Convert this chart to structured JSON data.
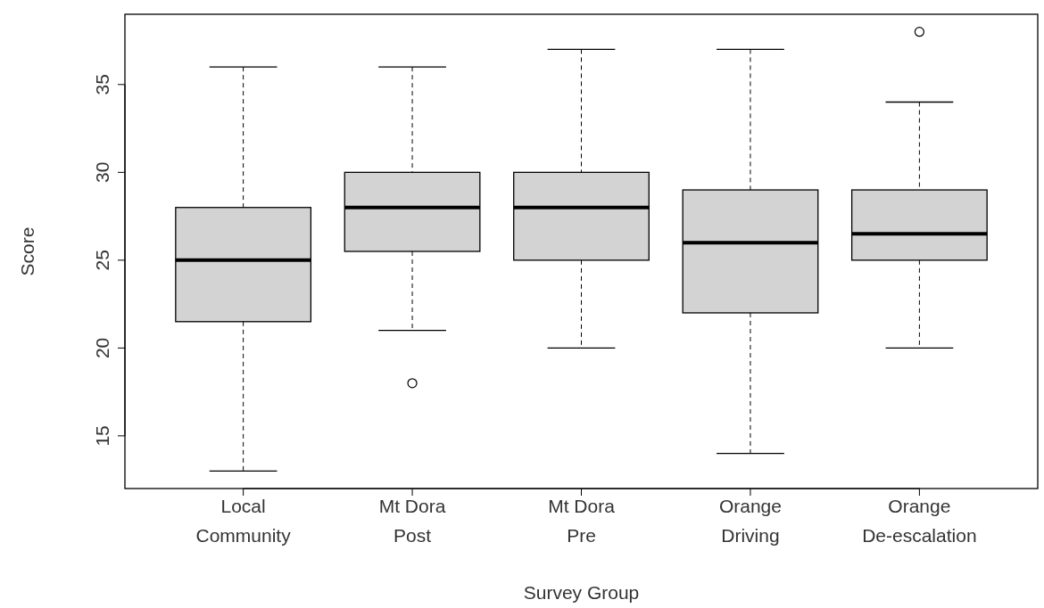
{
  "chart_data": {
    "type": "box",
    "xlabel": "Survey Group",
    "ylabel": "Score",
    "categories": [
      "Local\nCommunity",
      "Mt Dora\nPost",
      "Mt Dora\nPre",
      "Orange\nDriving",
      "Orange\nDe-escalation"
    ],
    "color": "#d3d3d3",
    "boxes": [
      {
        "low": 13,
        "q1": 21.5,
        "median": 25,
        "q3": 28,
        "high": 36
      },
      {
        "low": 21,
        "q1": 25.5,
        "median": 28,
        "q3": 30,
        "high": 36,
        "outliers": [
          18
        ]
      },
      {
        "low": 20,
        "q1": 25,
        "median": 28,
        "q3": 30,
        "high": 37
      },
      {
        "low": 14,
        "q1": 22,
        "median": 26,
        "q3": 29,
        "high": 37
      },
      {
        "low": 20,
        "q1": 25,
        "median": 26.5,
        "q3": 29,
        "high": 34,
        "outliers": [
          38
        ]
      }
    ],
    "ylim": [
      12,
      39
    ],
    "yticks": [
      15,
      20,
      25,
      30,
      35
    ],
    "grid": false
  }
}
